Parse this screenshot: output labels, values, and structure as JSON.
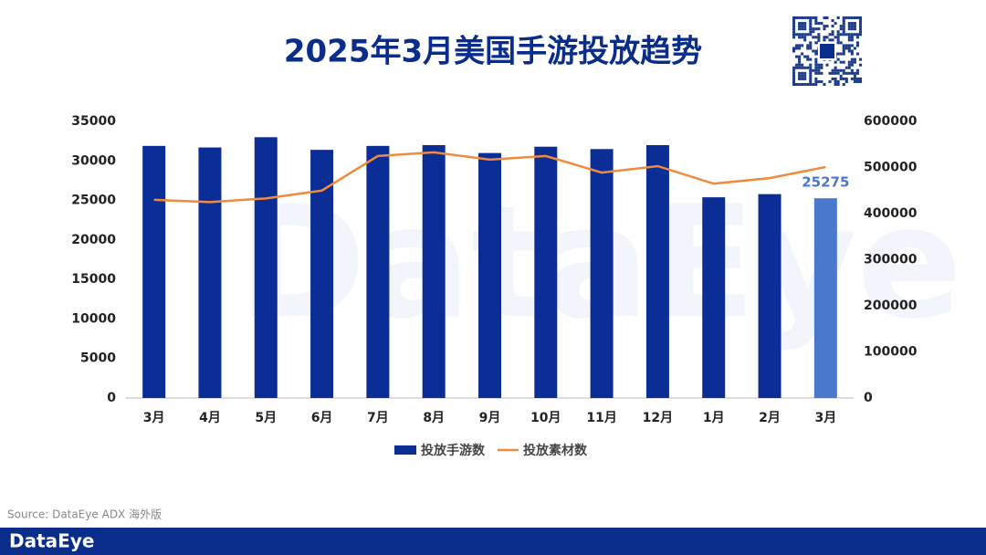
{
  "chart_data": {
    "type": "bar_line",
    "title": "2025年3月美国手游投放趋势",
    "categories": [
      "3月",
      "4月",
      "5月",
      "6月",
      "7月",
      "8月",
      "9月",
      "10月",
      "11月",
      "12月",
      "1月",
      "2月",
      "3月"
    ],
    "series": [
      {
        "name": "投放手游数",
        "type": "bar",
        "color": "#0a2e96",
        "highlight_color": "#4a78cc",
        "values": [
          31900,
          31700,
          33000,
          31400,
          31900,
          32000,
          31000,
          31800,
          31500,
          32000,
          25400,
          25800,
          25275
        ]
      },
      {
        "name": "投放素材数",
        "type": "line",
        "axis": "y2",
        "color": "#f08a3c",
        "values": [
          430000,
          425000,
          433000,
          450000,
          525000,
          533000,
          517000,
          525000,
          489000,
          503000,
          465000,
          477000,
          501000
        ]
      }
    ],
    "ylim": [
      0,
      35000
    ],
    "yticks": [
      0,
      5000,
      10000,
      15000,
      20000,
      25000,
      30000,
      35000
    ],
    "y2lim": [
      0,
      600000
    ],
    "y2ticks": [
      0,
      100000,
      200000,
      300000,
      400000,
      500000,
      600000
    ],
    "grid": false,
    "legend": "bottom",
    "source": "Source: DataEye ADX 海外版",
    "brand": "DataEye"
  }
}
